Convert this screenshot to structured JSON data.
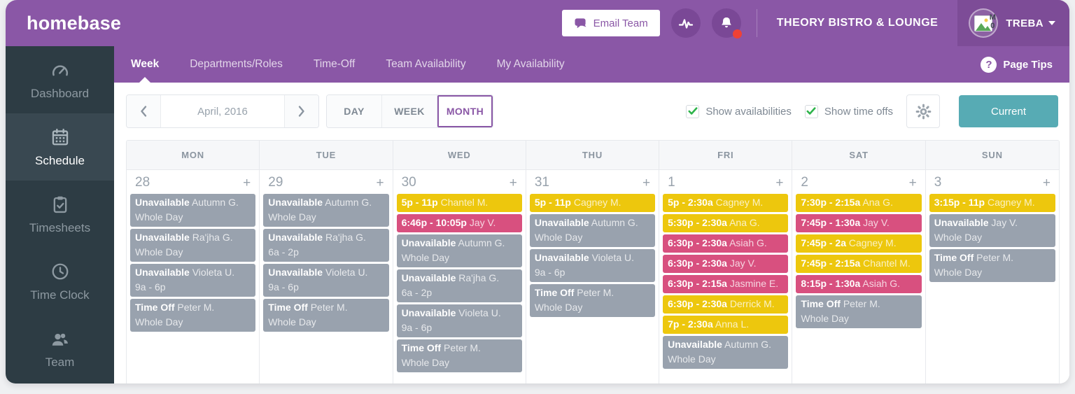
{
  "brand": {
    "logo": "homebase"
  },
  "header": {
    "email_team_label": "Email Team",
    "company_name": "THEORY BISTRO & LOUNGE",
    "user_name": "TREBA",
    "avatar_alt": "M0",
    "has_notification_dot": true
  },
  "nav": {
    "tabs": [
      {
        "label": "Week",
        "active": true
      },
      {
        "label": "Departments/Roles",
        "active": false
      },
      {
        "label": "Time-Off",
        "active": false
      },
      {
        "label": "Team Availability",
        "active": false
      },
      {
        "label": "My Availability",
        "active": false
      }
    ],
    "page_tips_label": "Page Tips"
  },
  "sidebar": {
    "items": [
      {
        "label": "Dashboard",
        "icon": "gauge-icon",
        "active": false
      },
      {
        "label": "Schedule",
        "icon": "calendar-icon",
        "active": true
      },
      {
        "label": "Timesheets",
        "icon": "timesheet-icon",
        "active": false
      },
      {
        "label": "Time Clock",
        "icon": "clock-icon",
        "active": false
      },
      {
        "label": "Team",
        "icon": "team-icon",
        "active": false
      }
    ]
  },
  "toolbar": {
    "date_label": "April, 2016",
    "views": [
      {
        "label": "DAY",
        "active": false
      },
      {
        "label": "WEEK",
        "active": false
      },
      {
        "label": "MONTH",
        "active": true
      }
    ],
    "checkboxes": [
      {
        "label": "Show availabilities",
        "checked": true
      },
      {
        "label": "Show time offs",
        "checked": true
      }
    ],
    "current_label": "Current"
  },
  "calendar": {
    "day_headers": [
      "MON",
      "TUE",
      "WED",
      "THU",
      "FRI",
      "SAT",
      "SUN"
    ],
    "days": [
      {
        "date": "28",
        "events": [
          {
            "style": "gray",
            "bold": "Unavailable",
            "name": "Autumn G.",
            "detail": "Whole Day"
          },
          {
            "style": "gray",
            "bold": "Unavailable",
            "name": "Ra'jha G.",
            "detail": "Whole Day"
          },
          {
            "style": "gray",
            "bold": "Unavailable",
            "name": "Violeta U.",
            "detail": "9a - 6p"
          },
          {
            "style": "gray",
            "bold": "Time Off",
            "name": "Peter M.",
            "detail": "Whole Day"
          }
        ]
      },
      {
        "date": "29",
        "events": [
          {
            "style": "gray",
            "bold": "Unavailable",
            "name": "Autumn G.",
            "detail": "Whole Day"
          },
          {
            "style": "gray",
            "bold": "Unavailable",
            "name": "Ra'jha G.",
            "detail": "6a - 2p"
          },
          {
            "style": "gray",
            "bold": "Unavailable",
            "name": "Violeta U.",
            "detail": "9a - 6p"
          },
          {
            "style": "gray",
            "bold": "Time Off",
            "name": "Peter M.",
            "detail": "Whole Day"
          }
        ]
      },
      {
        "date": "30",
        "events": [
          {
            "style": "yellow",
            "bold": "5p - 11p",
            "name": "Chantel M."
          },
          {
            "style": "pink",
            "bold": "6:46p - 10:05p",
            "name": "Jay V."
          },
          {
            "style": "gray",
            "bold": "Unavailable",
            "name": "Autumn G.",
            "detail": "Whole Day"
          },
          {
            "style": "gray",
            "bold": "Unavailable",
            "name": "Ra'jha G.",
            "detail": "6a - 2p"
          },
          {
            "style": "gray",
            "bold": "Unavailable",
            "name": "Violeta U.",
            "detail": "9a - 6p"
          },
          {
            "style": "gray",
            "bold": "Time Off",
            "name": "Peter M.",
            "detail": "Whole Day"
          }
        ]
      },
      {
        "date": "31",
        "events": [
          {
            "style": "yellow",
            "bold": "5p - 11p",
            "name": "Cagney M."
          },
          {
            "style": "gray",
            "bold": "Unavailable",
            "name": "Autumn G.",
            "detail": "Whole Day"
          },
          {
            "style": "gray",
            "bold": "Unavailable",
            "name": "Violeta U.",
            "detail": "9a - 6p"
          },
          {
            "style": "gray",
            "bold": "Time Off",
            "name": "Peter M.",
            "detail": "Whole Day"
          }
        ]
      },
      {
        "date": "1",
        "events": [
          {
            "style": "yellow",
            "bold": "5p - 2:30a",
            "name": "Cagney M."
          },
          {
            "style": "yellow",
            "bold": "5:30p - 2:30a",
            "name": "Ana G."
          },
          {
            "style": "pink",
            "bold": "6:30p - 2:30a",
            "name": "Asiah G."
          },
          {
            "style": "pink",
            "bold": "6:30p - 2:30a",
            "name": "Jay V."
          },
          {
            "style": "pink",
            "bold": "6:30p - 2:15a",
            "name": "Jasmine E."
          },
          {
            "style": "yellow",
            "bold": "6:30p - 2:30a",
            "name": "Derrick M."
          },
          {
            "style": "yellow",
            "bold": "7p - 2:30a",
            "name": "Anna L."
          },
          {
            "style": "gray",
            "bold": "Unavailable",
            "name": "Autumn G.",
            "detail": "Whole Day"
          }
        ]
      },
      {
        "date": "2",
        "events": [
          {
            "style": "yellow",
            "bold": "7:30p - 2:15a",
            "name": "Ana G."
          },
          {
            "style": "pink",
            "bold": "7:45p - 1:30a",
            "name": "Jay V."
          },
          {
            "style": "yellow",
            "bold": "7:45p - 2a",
            "name": "Cagney M."
          },
          {
            "style": "yellow",
            "bold": "7:45p - 2:15a",
            "name": "Chantel M."
          },
          {
            "style": "pink",
            "bold": "8:15p - 1:30a",
            "name": "Asiah G."
          },
          {
            "style": "gray",
            "bold": "Time Off",
            "name": "Peter M.",
            "detail": "Whole Day"
          }
        ]
      },
      {
        "date": "3",
        "events": [
          {
            "style": "yellow",
            "bold": "3:15p - 11p",
            "name": "Cagney M."
          },
          {
            "style": "gray",
            "bold": "Unavailable",
            "name": "Jay V.",
            "detail": "Whole Day"
          },
          {
            "style": "gray",
            "bold": "Time Off",
            "name": "Peter M.",
            "detail": "Whole Day"
          }
        ]
      }
    ]
  },
  "colors": {
    "purple": "#8a57a6",
    "purple_dark": "#7a4896",
    "account_purple": "#7d4c97",
    "sidebar_bg": "#2d3c44",
    "sidebar_active_bg": "#394851",
    "teal_button": "#57abb4",
    "event_yellow": "#edc70d",
    "event_pink": "#d8507f",
    "event_gray": "#99a2ae",
    "check_green": "#2eb44b",
    "notification_red": "#ef4136"
  }
}
